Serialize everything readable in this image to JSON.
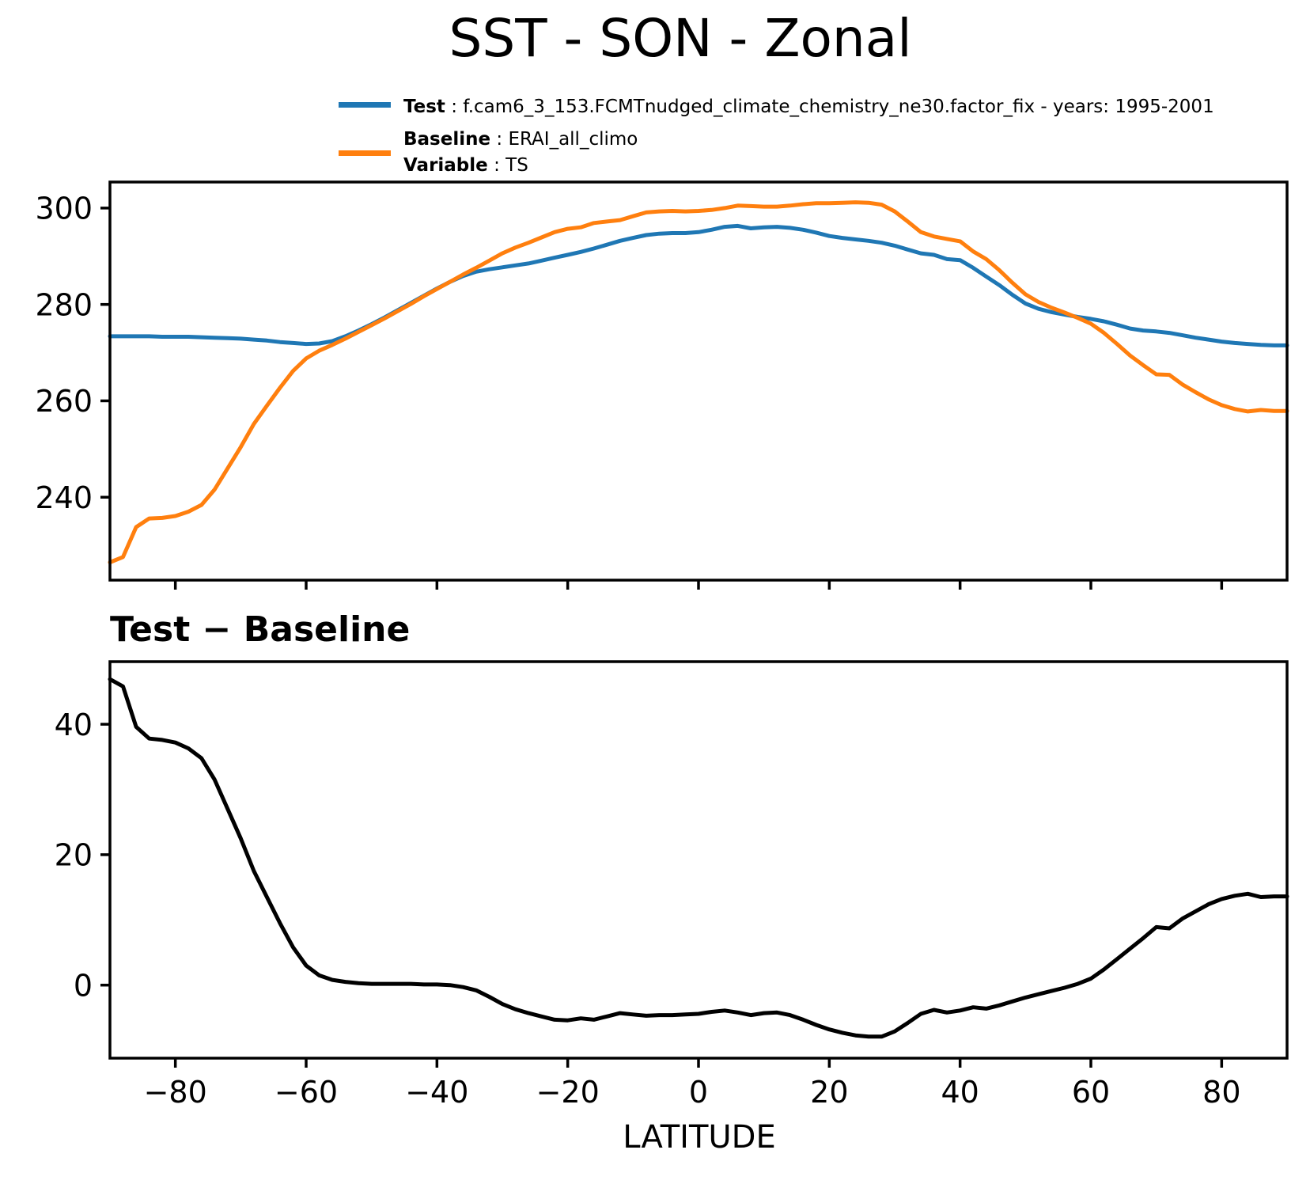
{
  "title": "SST - SON - Zonal",
  "legend": {
    "sep": " : ",
    "items": [
      {
        "series": "Test",
        "color": "#1f77b4",
        "lines": [
          {
            "key": "Test",
            "value": "f.cam6_3_153.FCMTnudged_climate_chemistry_ne30.factor_fix - years: 1995-2001"
          }
        ]
      },
      {
        "series": "Baseline",
        "color": "#ff7f0e",
        "lines": [
          {
            "key": "Baseline",
            "value": "ERAI_all_climo"
          },
          {
            "key": "Variable",
            "value": "TS"
          }
        ]
      }
    ]
  },
  "colors": {
    "test_line": "#1f77b4",
    "baseline_line": "#ff7f0e",
    "diff_line": "#000000",
    "axis": "#000000",
    "background": "#ffffff"
  },
  "chart_data": [
    {
      "type": "line",
      "title": "SST - SON - Zonal",
      "xlabel": "",
      "ylabel": "",
      "xlim": [
        -90,
        90
      ],
      "ylim": [
        222.8,
        305.4
      ],
      "yticks": [
        240,
        260,
        280,
        300
      ],
      "ytick_labels": [
        "240",
        "260",
        "280",
        "300"
      ],
      "xticks": [
        -80,
        -60,
        -40,
        -20,
        0,
        20,
        40,
        60,
        80
      ],
      "xtick_labels": [
        "",
        "",
        "",
        "",
        "",
        "",
        "",
        "",
        ""
      ],
      "xtick_labels_visible": false,
      "grid": false,
      "legend_position": "above-left",
      "x": [
        -90,
        -88,
        -86,
        -84,
        -82,
        -80,
        -78,
        -76,
        -74,
        -72,
        -70,
        -68,
        -66,
        -64,
        -62,
        -60,
        -58,
        -56,
        -54,
        -52,
        -50,
        -48,
        -46,
        -44,
        -42,
        -40,
        -38,
        -36,
        -34,
        -32,
        -30,
        -28,
        -26,
        -24,
        -22,
        -20,
        -18,
        -16,
        -14,
        -12,
        -10,
        -8,
        -6,
        -4,
        -2,
        0,
        2,
        4,
        6,
        8,
        10,
        12,
        14,
        16,
        18,
        20,
        22,
        24,
        26,
        28,
        30,
        32,
        34,
        36,
        38,
        40,
        42,
        44,
        46,
        48,
        50,
        52,
        54,
        56,
        58,
        60,
        62,
        64,
        66,
        68,
        70,
        72,
        74,
        76,
        78,
        80,
        82,
        84,
        86,
        88,
        90
      ],
      "series": [
        {
          "name": "Test",
          "color": "#1f77b4",
          "values": [
            273.4,
            273.4,
            273.4,
            273.4,
            273.3,
            273.3,
            273.3,
            273.2,
            273.1,
            273.0,
            272.9,
            272.7,
            272.5,
            272.2,
            272.0,
            271.8,
            271.9,
            272.4,
            273.4,
            274.6,
            275.9,
            277.3,
            278.8,
            280.3,
            281.8,
            283.3,
            284.7,
            285.9,
            286.8,
            287.3,
            287.7,
            288.1,
            288.5,
            289.1,
            289.7,
            290.3,
            290.9,
            291.6,
            292.4,
            293.2,
            293.8,
            294.4,
            294.7,
            294.8,
            294.8,
            295.0,
            295.5,
            296.1,
            296.3,
            295.8,
            296.0,
            296.1,
            295.9,
            295.5,
            294.9,
            294.2,
            293.8,
            293.5,
            293.2,
            292.8,
            292.2,
            291.4,
            290.6,
            290.3,
            289.4,
            289.2,
            287.6,
            285.8,
            284.0,
            282.0,
            280.2,
            279.1,
            278.4,
            277.9,
            277.4,
            277.0,
            276.5,
            275.8,
            275.0,
            274.6,
            274.4,
            274.1,
            273.6,
            273.1,
            272.7,
            272.3,
            272.0,
            271.8,
            271.6,
            271.5,
            271.5
          ]
        },
        {
          "name": "Baseline",
          "color": "#ff7f0e",
          "values": [
            226.5,
            227.6,
            233.8,
            235.6,
            235.7,
            236.1,
            237.0,
            238.4,
            241.6,
            246.0,
            250.4,
            255.2,
            259.0,
            262.7,
            266.2,
            268.8,
            270.4,
            271.6,
            272.9,
            274.3,
            275.7,
            277.1,
            278.6,
            280.1,
            281.7,
            283.2,
            284.7,
            286.2,
            287.6,
            289.1,
            290.6,
            291.8,
            292.8,
            293.9,
            295.0,
            295.7,
            296.0,
            296.9,
            297.2,
            297.5,
            298.3,
            299.1,
            299.3,
            299.4,
            299.3,
            299.4,
            299.6,
            300.0,
            300.5,
            300.4,
            300.3,
            300.3,
            300.5,
            300.8,
            301.0,
            301.0,
            301.1,
            301.2,
            301.1,
            300.7,
            299.3,
            297.2,
            295.0,
            294.1,
            293.6,
            293.1,
            291.0,
            289.4,
            287.1,
            284.5,
            282.1,
            280.5,
            279.3,
            278.3,
            277.2,
            276.0,
            274.1,
            271.8,
            269.4,
            267.4,
            265.5,
            265.4,
            263.4,
            261.8,
            260.3,
            259.1,
            258.3,
            257.8,
            258.1,
            257.9,
            257.9
          ]
        }
      ]
    },
    {
      "type": "line",
      "title": "Test − Baseline",
      "xlabel": "LATITUDE",
      "ylabel": "",
      "xlim": [
        -90,
        90
      ],
      "ylim": [
        -11.2,
        49.6
      ],
      "yticks": [
        0,
        20,
        40
      ],
      "ytick_labels": [
        "0",
        "20",
        "40"
      ],
      "xticks": [
        -80,
        -60,
        -40,
        -20,
        0,
        20,
        40,
        60,
        80
      ],
      "xtick_labels": [
        "−80",
        "−60",
        "−40",
        "−20",
        "0",
        "20",
        "40",
        "60",
        "80"
      ],
      "xtick_labels_visible": true,
      "grid": false,
      "x": [
        -90,
        -88,
        -86,
        -84,
        -82,
        -80,
        -78,
        -76,
        -74,
        -72,
        -70,
        -68,
        -66,
        -64,
        -62,
        -60,
        -58,
        -56,
        -54,
        -52,
        -50,
        -48,
        -46,
        -44,
        -42,
        -40,
        -38,
        -36,
        -34,
        -32,
        -30,
        -28,
        -26,
        -24,
        -22,
        -20,
        -18,
        -16,
        -14,
        -12,
        -10,
        -8,
        -6,
        -4,
        -2,
        0,
        2,
        4,
        6,
        8,
        10,
        12,
        14,
        16,
        18,
        20,
        22,
        24,
        26,
        28,
        30,
        32,
        34,
        36,
        38,
        40,
        42,
        44,
        46,
        48,
        50,
        52,
        54,
        56,
        58,
        60,
        62,
        64,
        66,
        68,
        70,
        72,
        74,
        76,
        78,
        80,
        82,
        84,
        86,
        88,
        90
      ],
      "series": [
        {
          "name": "Test − Baseline",
          "color": "#000000",
          "values": [
            46.9,
            45.8,
            39.6,
            37.8,
            37.6,
            37.2,
            36.3,
            34.8,
            31.5,
            27.0,
            22.5,
            17.5,
            13.5,
            9.5,
            5.8,
            3.0,
            1.5,
            0.8,
            0.5,
            0.3,
            0.2,
            0.2,
            0.2,
            0.2,
            0.1,
            0.1,
            0.0,
            -0.3,
            -0.8,
            -1.8,
            -2.9,
            -3.7,
            -4.3,
            -4.8,
            -5.3,
            -5.4,
            -5.1,
            -5.3,
            -4.8,
            -4.3,
            -4.5,
            -4.7,
            -4.6,
            -4.6,
            -4.5,
            -4.4,
            -4.1,
            -3.9,
            -4.2,
            -4.6,
            -4.3,
            -4.2,
            -4.6,
            -5.3,
            -6.1,
            -6.8,
            -7.3,
            -7.7,
            -7.9,
            -7.9,
            -7.1,
            -5.8,
            -4.4,
            -3.8,
            -4.2,
            -3.9,
            -3.4,
            -3.6,
            -3.1,
            -2.5,
            -1.9,
            -1.4,
            -0.9,
            -0.4,
            0.2,
            1.0,
            2.4,
            4.0,
            5.6,
            7.2,
            8.9,
            8.7,
            10.2,
            11.3,
            12.4,
            13.2,
            13.7,
            14.0,
            13.5,
            13.6,
            13.6
          ]
        }
      ]
    }
  ]
}
